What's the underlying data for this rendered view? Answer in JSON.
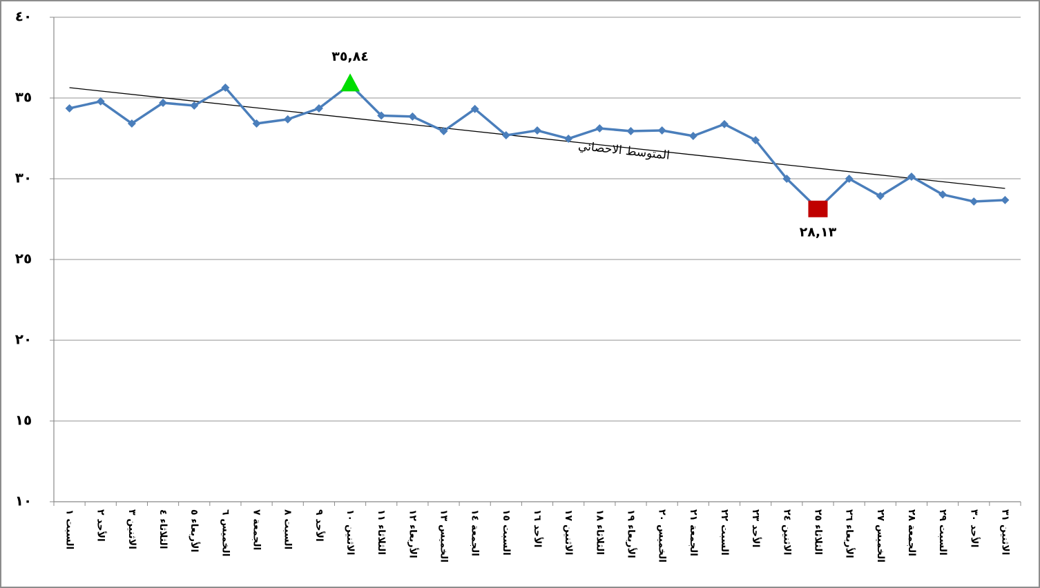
{
  "chart_data": {
    "type": "line",
    "categories": [
      "السبت ١",
      "الأحد ٢",
      "الاثنين ٣",
      "الثلاثاء ٤",
      "الأربعاء ٥",
      "الخميس ٦",
      "الجمعة ٧",
      "السبت ٨",
      "الأحد ٩",
      "الاثنين ١٠",
      "الثلاثاء ١١",
      "الأربعاء ١٢",
      "الخميس ١٣",
      "الجمعة ١٤",
      "السبت ١٥",
      "الأحد ١٦",
      "الاثنين ١٧",
      "الثلاثاء ١٨",
      "الأربعاء ١٩",
      "الخميس ٢٠",
      "الجمعة ٢١",
      "السبت ٢٢",
      "الأحد ٢٣",
      "الاثنين ٢٤",
      "الثلاثاء ٢٥",
      "الأربعاء ٢٦",
      "الخميس ٢٧",
      "الجمعة ٢٨",
      "السبت ٢٩",
      "الأحد ٣٠",
      "الاثنين ٣١"
    ],
    "values": [
      34.36,
      34.79,
      33.42,
      34.7,
      34.53,
      35.64,
      33.42,
      33.68,
      34.36,
      35.84,
      33.91,
      33.85,
      32.95,
      34.32,
      32.69,
      32.99,
      32.48,
      33.12,
      32.95,
      32.99,
      32.65,
      33.38,
      32.39,
      30.0,
      28.13,
      30.0,
      28.93,
      30.13,
      29.02,
      28.59,
      28.68
    ],
    "value_labels": [
      null,
      null,
      null,
      null,
      null,
      null,
      null,
      null,
      null,
      "٣٥,٨٤",
      null,
      null,
      null,
      null,
      null,
      null,
      null,
      null,
      null,
      null,
      null,
      null,
      null,
      null,
      "٢٨,١٣",
      null,
      null,
      null,
      null,
      null,
      null
    ],
    "color": "#4a7ebb",
    "highlight_markers": {
      "max": {
        "shape": "triangle",
        "color": "#00dd00"
      },
      "min": {
        "shape": "square",
        "color": "#c00000"
      }
    },
    "trendline": {
      "label": "المتوسط الاحصائي",
      "start": 35.64,
      "end": 29.4,
      "color": "#000000"
    },
    "ylim": [
      10,
      40
    ],
    "yticks": [
      {
        "value": 10,
        "label": "١٠"
      },
      {
        "value": 15,
        "label": "١٥"
      },
      {
        "value": 20,
        "label": "٢٠"
      },
      {
        "value": 25,
        "label": "٢٥"
      },
      {
        "value": 30,
        "label": "٣٠"
      },
      {
        "value": 35,
        "label": "٣٥"
      },
      {
        "value": 40,
        "label": "٤٠"
      }
    ],
    "grid": true
  }
}
